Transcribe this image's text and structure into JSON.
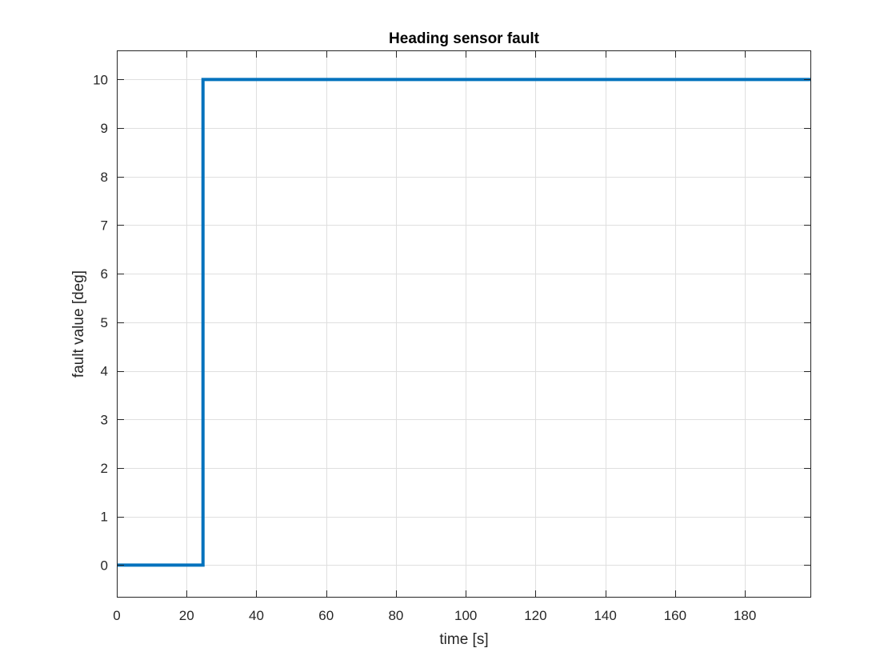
{
  "chart_data": {
    "type": "line",
    "title": "Heading sensor fault",
    "xlabel": "time [s]",
    "ylabel": "fault value [deg]",
    "xlim": [
      0,
      199
    ],
    "ylim": [
      -0.67,
      10.6
    ],
    "x_ticks": [
      0,
      20,
      40,
      60,
      80,
      100,
      120,
      140,
      160,
      180
    ],
    "y_ticks": [
      0,
      1,
      2,
      3,
      4,
      5,
      6,
      7,
      8,
      9,
      10
    ],
    "grid": true,
    "legend": false,
    "series": [
      {
        "color": "#0072bd",
        "x": [
          0,
          24.7,
          24.7,
          199
        ],
        "y": [
          0,
          0,
          10,
          10
        ]
      }
    ]
  }
}
